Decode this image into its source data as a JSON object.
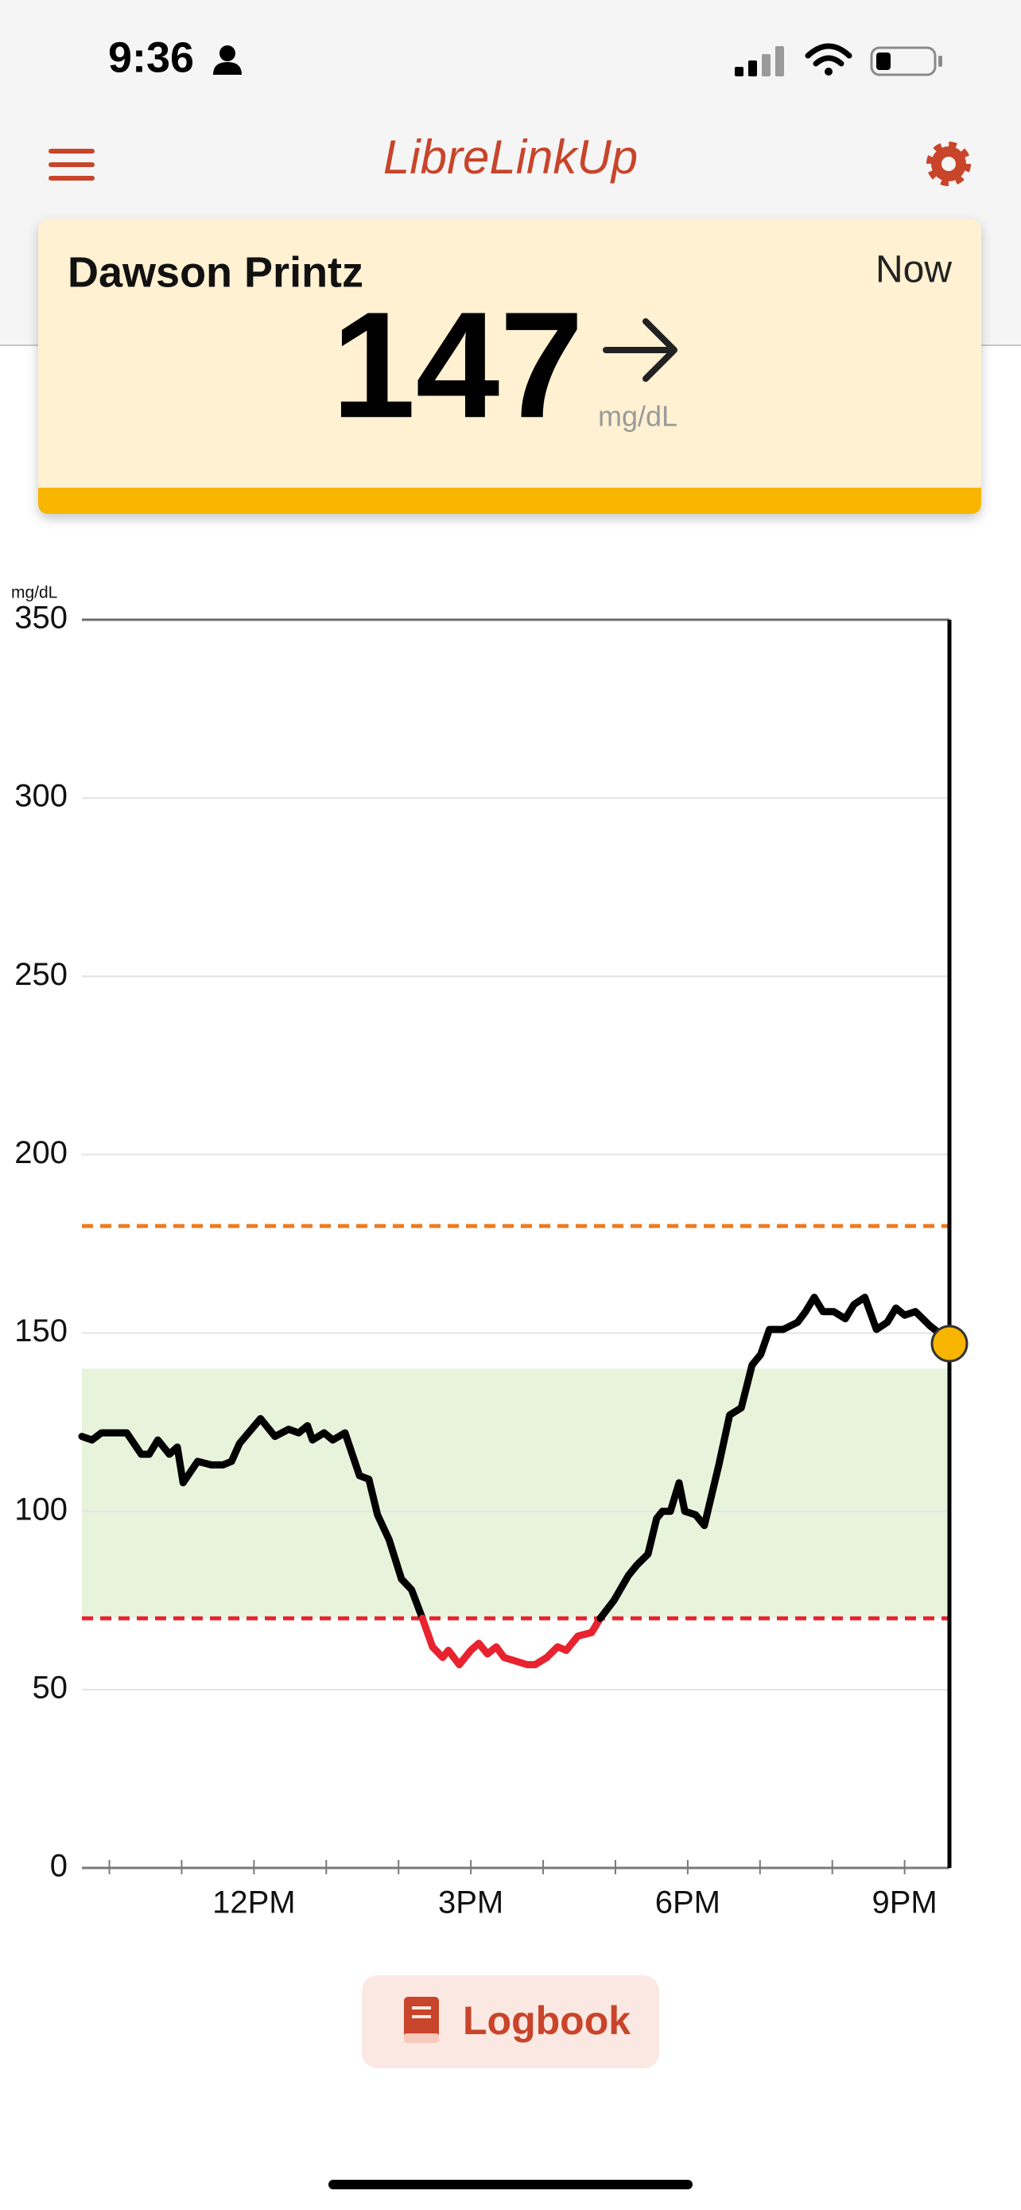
{
  "status_bar": {
    "time": "9:36"
  },
  "header": {
    "title": "LibreLinkUp"
  },
  "card": {
    "name": "Dawson Printz",
    "time_label": "Now",
    "value": 147,
    "unit": "mg/dL"
  },
  "chart_data": {
    "type": "line",
    "y_unit_label": "mg/dL",
    "x": [
      9.62,
      9.76,
      9.89,
      10.24,
      10.44,
      10.55,
      10.67,
      10.83,
      10.94,
      11.02,
      11.22,
      11.41,
      11.57,
      11.69,
      11.8,
      12.09,
      12.29,
      12.48,
      12.62,
      12.74,
      12.81,
      12.97,
      13.09,
      13.26,
      13.46,
      13.59,
      13.71,
      13.87,
      14.04,
      14.18,
      14.33,
      14.47,
      14.61,
      14.69,
      14.84,
      15.0,
      15.11,
      15.23,
      15.35,
      15.46,
      15.62,
      15.78,
      15.89,
      16.05,
      16.2,
      16.32,
      16.48,
      16.67,
      16.79,
      16.98,
      17.18,
      17.3,
      17.45,
      17.57,
      17.65,
      17.76,
      17.88,
      17.96,
      18.11,
      18.23,
      18.43,
      18.58,
      18.74,
      18.89,
      19.01,
      19.13,
      19.32,
      19.52,
      19.63,
      19.75,
      19.87,
      20.02,
      20.18,
      20.3,
      20.45,
      20.61,
      20.76,
      20.88,
      21.0,
      21.15,
      21.35,
      21.54,
      21.62
    ],
    "values": [
      121,
      120,
      122,
      122,
      116,
      116,
      120,
      116,
      118,
      108,
      114,
      113,
      113,
      114,
      119,
      126,
      121,
      123,
      122,
      124,
      120,
      122,
      120,
      122,
      110,
      109,
      99,
      92,
      81,
      78,
      70,
      62,
      59,
      61,
      57,
      61,
      63,
      60,
      62,
      59,
      58,
      57,
      57,
      59,
      62,
      61,
      65,
      66,
      70,
      75,
      82,
      85,
      88,
      98,
      100,
      100,
      108,
      100,
      99,
      96,
      113,
      127,
      129,
      141,
      144,
      151,
      151,
      153,
      156,
      160,
      156,
      156,
      154,
      158,
      160,
      151,
      153,
      157,
      155,
      156,
      152,
      149,
      147
    ],
    "color": "#000000",
    "low_color": "#e8222e",
    "current_color": "#f7b500",
    "xlim": [
      9.62,
      21.62
    ],
    "xticks": [
      {
        "value": 12,
        "label": "12PM"
      },
      {
        "value": 15,
        "label": "3PM"
      },
      {
        "value": 18,
        "label": "6PM"
      },
      {
        "value": 21,
        "label": "9PM"
      }
    ],
    "xminor_ticks": [
      10,
      11,
      13,
      14,
      16,
      17,
      19,
      20
    ],
    "ylim": [
      0,
      350
    ],
    "yticks": [
      0,
      50,
      100,
      150,
      200,
      250,
      300,
      350
    ],
    "grid": true,
    "target_range": [
      70,
      140
    ],
    "target_color": "#e7f4db",
    "high_threshold": 180,
    "high_color": "#ee7a1f",
    "low_threshold": 70
  },
  "logbook": {
    "label": "Logbook"
  }
}
